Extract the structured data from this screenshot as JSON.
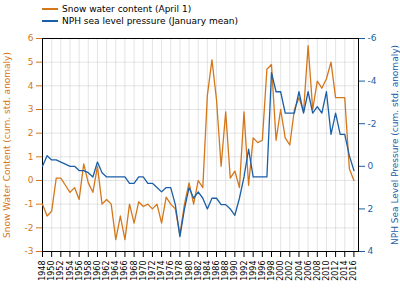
{
  "chart_data": {
    "type": "line",
    "x": [
      1948,
      1949,
      1950,
      1951,
      1952,
      1953,
      1954,
      1955,
      1956,
      1957,
      1958,
      1959,
      1960,
      1961,
      1962,
      1963,
      1964,
      1965,
      1966,
      1967,
      1968,
      1969,
      1970,
      1971,
      1972,
      1973,
      1974,
      1975,
      1976,
      1977,
      1978,
      1979,
      1980,
      1981,
      1982,
      1983,
      1984,
      1985,
      1986,
      1987,
      1988,
      1989,
      1990,
      1991,
      1992,
      1993,
      1994,
      1995,
      1996,
      1997,
      1998,
      1999,
      2000,
      2001,
      2002,
      2003,
      2004,
      2005,
      2006,
      2007,
      2008,
      2009,
      2010,
      2011,
      2012,
      2013,
      2014,
      2015,
      2016
    ],
    "series": [
      {
        "name": "Snow water content (April 1)",
        "color": "#d4771a",
        "values": [
          -1.0,
          -1.5,
          -1.3,
          0.1,
          0.1,
          -0.2,
          -0.5,
          -0.3,
          -0.8,
          0.7,
          -0.1,
          -0.5,
          0.6,
          -1.0,
          -0.8,
          -1.0,
          -2.5,
          -1.5,
          -2.5,
          -1.0,
          -1.8,
          -0.9,
          -1.1,
          -1.0,
          -1.2,
          -1.0,
          -1.8,
          -0.7,
          -1.0,
          -1.2,
          -2.3,
          -1.0,
          -0.1,
          -1.0,
          0.0,
          -0.3,
          3.6,
          5.1,
          3.4,
          0.6,
          2.9,
          0.1,
          0.4,
          -0.3,
          2.9,
          -0.2,
          1.8,
          1.6,
          1.7,
          4.7,
          4.9,
          1.7,
          3.0,
          1.8,
          1.5,
          3.0,
          3.5,
          2.9,
          5.7,
          3.0,
          4.2,
          3.9,
          4.3,
          5.0,
          3.5,
          3.5,
          3.5,
          0.5,
          0.0
        ]
      },
      {
        "name": "NPH sea level pressure (January mean)",
        "color": "#1a5fa8",
        "axis": "y2",
        "values": [
          0.0,
          -0.5,
          -0.3,
          -0.3,
          -0.2,
          -0.1,
          0.0,
          0.0,
          0.2,
          0.2,
          0.3,
          0.5,
          -0.2,
          0.3,
          0.5,
          0.5,
          0.5,
          0.5,
          0.5,
          0.8,
          0.8,
          0.5,
          0.5,
          0.8,
          0.8,
          1.0,
          1.2,
          1.0,
          1.0,
          1.8,
          3.3,
          2.0,
          1.0,
          1.5,
          1.2,
          1.5,
          2.0,
          1.5,
          1.5,
          1.8,
          1.8,
          2.0,
          2.3,
          1.5,
          0.5,
          -0.8,
          0.5,
          0.5,
          0.5,
          0.5,
          -4.4,
          -3.5,
          -3.5,
          -2.5,
          -2.5,
          -2.5,
          -3.5,
          -2.5,
          -3.5,
          -2.5,
          -2.8,
          -2.5,
          -3.5,
          -1.5,
          -2.5,
          -1.5,
          -1.5,
          -0.5,
          0.2
        ]
      }
    ],
    "ylabel": "Snow Water Content (cum. std. anomaly)",
    "y2label": "NPH Sea Level Pressure (cum. std. anomaly)",
    "xlim": [
      1948,
      2017
    ],
    "xticks": [
      1948,
      1950,
      1952,
      1954,
      1956,
      1958,
      1960,
      1962,
      1964,
      1966,
      1968,
      1970,
      1972,
      1974,
      1976,
      1978,
      1980,
      1982,
      1984,
      1986,
      1988,
      1990,
      1992,
      1994,
      1996,
      1998,
      2000,
      2002,
      2004,
      2006,
      2008,
      2010,
      2012,
      2014,
      2016
    ],
    "ylim": [
      -3,
      6
    ],
    "yticks": [
      -3,
      -2,
      -1,
      0,
      1,
      2,
      3,
      4,
      5,
      6
    ],
    "y2lim": [
      4,
      -6
    ],
    "y2ticks": [
      -6,
      -4,
      -2,
      0,
      2,
      4
    ],
    "grid": true,
    "legend": "upper left"
  }
}
